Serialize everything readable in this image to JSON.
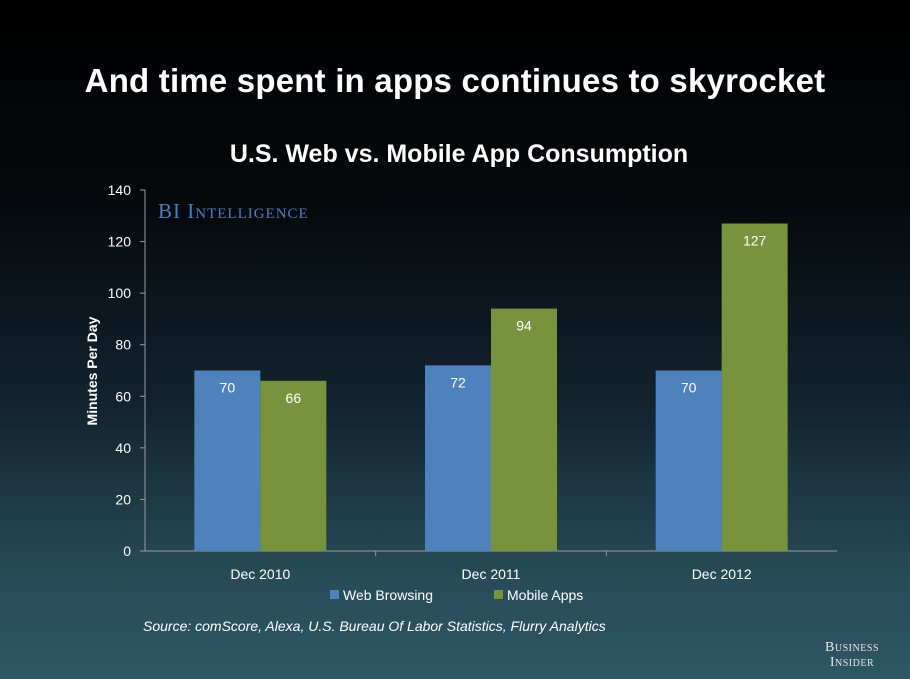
{
  "slide": {
    "title": "And time spent in apps continues to skyrocket",
    "source": "Source: comScore, Alexa, U.S. Bureau Of Labor Statistics, Flurry Analytics",
    "watermark": "BI Intelligence",
    "logo_line1": "Business",
    "logo_line2": "Insider"
  },
  "chart_data": {
    "type": "bar",
    "title": "U.S. Web vs. Mobile App Consumption",
    "xlabel": "",
    "ylabel": "Minutes Per Day",
    "categories": [
      "Dec 2010",
      "Dec 2011",
      "Dec 2012"
    ],
    "series": [
      {
        "name": "Web Browsing",
        "values": [
          70,
          72,
          70
        ],
        "color": "#4f81bd"
      },
      {
        "name": "Mobile Apps",
        "values": [
          66,
          94,
          127
        ],
        "color": "#77933c"
      }
    ],
    "ylim": [
      0,
      140
    ],
    "yticks": [
      0,
      20,
      40,
      60,
      80,
      100,
      120,
      140
    ],
    "grid": false,
    "legend_position": "bottom"
  }
}
